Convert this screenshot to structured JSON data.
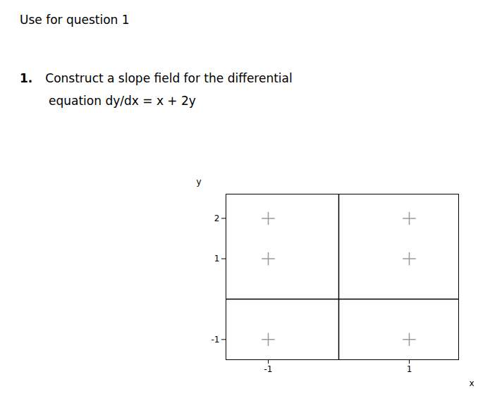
{
  "chart_data": {
    "type": "scatter",
    "title": "Use for question 1",
    "annotations": [
      "1.",
      "Construct a slope field for the differential",
      "equation",
      "dy/dx = x + 2y"
    ],
    "x_label": "x",
    "y_label": "y",
    "xlim": [
      -1.6,
      1.7
    ],
    "ylim": [
      -1.5,
      2.6
    ],
    "xticks": [
      -1,
      1
    ],
    "yticks": [
      -1,
      1,
      2
    ],
    "x": [
      -1,
      1,
      -1,
      1,
      -1,
      1
    ],
    "values": [
      2,
      2,
      1,
      1,
      -1,
      -1
    ],
    "color": "#999999",
    "marker": "plus",
    "grid": false
  }
}
